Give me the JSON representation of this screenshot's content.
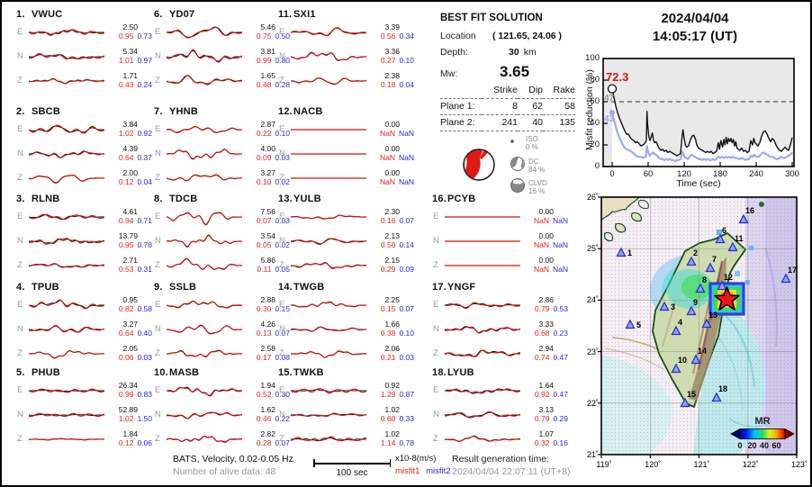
{
  "header": {
    "date": "2024/04/04",
    "time": "14:05:17  (UT)"
  },
  "stations": [
    {
      "id": "1.",
      "name": "VWUC",
      "components": [
        {
          "ch": "E",
          "amp": "2.50",
          "m1": "0.95",
          "m2": "0.73"
        },
        {
          "ch": "N",
          "amp": "5.34",
          "m1": "1.01",
          "m2": "0.97"
        },
        {
          "ch": "Z",
          "amp": "1.71",
          "m1": "0.43",
          "m2": "0.24"
        }
      ]
    },
    {
      "id": "2.",
      "name": "SBCB",
      "components": [
        {
          "ch": "E",
          "amp": "3.84",
          "m1": "1.02",
          "m2": "0.92"
        },
        {
          "ch": "N",
          "amp": "4.39",
          "m1": "0.64",
          "m2": "0.37"
        },
        {
          "ch": "Z",
          "amp": "2.00",
          "m1": "0.12",
          "m2": "0.04"
        }
      ]
    },
    {
      "id": "3.",
      "name": "RLNB",
      "components": [
        {
          "ch": "E",
          "amp": "4.61",
          "m1": "0.94",
          "m2": "0.71"
        },
        {
          "ch": "N",
          "amp": "13.79",
          "m1": "0.95",
          "m2": "0.78"
        },
        {
          "ch": "Z",
          "amp": "2.71",
          "m1": "0.53",
          "m2": "0.31"
        }
      ]
    },
    {
      "id": "4.",
      "name": "TPUB",
      "components": [
        {
          "ch": "E",
          "amp": "0.95",
          "m1": "0.82",
          "m2": "0.58"
        },
        {
          "ch": "N",
          "amp": "3.27",
          "m1": "0.64",
          "m2": "0.40"
        },
        {
          "ch": "Z",
          "amp": "2.05",
          "m1": "0.06",
          "m2": "0.03"
        }
      ]
    },
    {
      "id": "5.",
      "name": "PHUB",
      "components": [
        {
          "ch": "E",
          "amp": "26.34",
          "m1": "0.99",
          "m2": "0.83"
        },
        {
          "ch": "N",
          "amp": "52.89",
          "m1": "1.02",
          "m2": "1.50"
        },
        {
          "ch": "Z",
          "amp": "1.84",
          "m1": "0.12",
          "m2": "0.06"
        }
      ]
    },
    {
      "id": "6.",
      "name": "YD07",
      "components": [
        {
          "ch": "E",
          "amp": "5.46",
          "m1": "0.75",
          "m2": "0.50"
        },
        {
          "ch": "N",
          "amp": "3.81",
          "m1": "0.99",
          "m2": "0.80"
        },
        {
          "ch": "Z",
          "amp": "1.65",
          "m1": "0.48",
          "m2": "0.28"
        }
      ]
    },
    {
      "id": "7.",
      "name": "YHNB",
      "components": [
        {
          "ch": "E",
          "amp": "2.87",
          "m1": "0.22",
          "m2": "0.10"
        },
        {
          "ch": "N",
          "amp": "4.00",
          "m1": "0.09",
          "m2": "0.03"
        },
        {
          "ch": "Z",
          "amp": "3.27",
          "m1": "0.10",
          "m2": "0.02"
        }
      ]
    },
    {
      "id": "8.",
      "name": "TDCB",
      "components": [
        {
          "ch": "E",
          "amp": "7.56",
          "m1": "0.07",
          "m2": "0.03"
        },
        {
          "ch": "N",
          "amp": "3.54",
          "m1": "0.05",
          "m2": "0.02"
        },
        {
          "ch": "Z",
          "amp": "5.86",
          "m1": "0.11",
          "m2": "0.05"
        }
      ]
    },
    {
      "id": "9.",
      "name": "SSLB",
      "components": [
        {
          "ch": "E",
          "amp": "2.88",
          "m1": "0.30",
          "m2": "0.15"
        },
        {
          "ch": "N",
          "amp": "4.26",
          "m1": "0.13",
          "m2": "0.07"
        },
        {
          "ch": "Z",
          "amp": "2.58",
          "m1": "0.17",
          "m2": "0.08"
        }
      ]
    },
    {
      "id": "10.",
      "name": "MASB",
      "components": [
        {
          "ch": "E",
          "amp": "1.94",
          "m1": "0.52",
          "m2": "0.30"
        },
        {
          "ch": "N",
          "amp": "1.62",
          "m1": "0.46",
          "m2": "0.22"
        },
        {
          "ch": "Z",
          "amp": "2.82",
          "m1": "0.28",
          "m2": "0.07"
        }
      ]
    },
    {
      "id": "11.",
      "name": "SXI1",
      "components": [
        {
          "ch": "E",
          "amp": "3.39",
          "m1": "0.56",
          "m2": "0.34"
        },
        {
          "ch": "N",
          "amp": "3.36",
          "m1": "0.27",
          "m2": "0.10"
        },
        {
          "ch": "Z",
          "amp": "2.38",
          "m1": "0.18",
          "m2": "0.04"
        }
      ]
    },
    {
      "id": "12.",
      "name": "NACB",
      "components": [
        {
          "ch": "E",
          "amp": "0.00",
          "m1": "NaN",
          "m2": "NaN"
        },
        {
          "ch": "N",
          "amp": "0.00",
          "m1": "NaN",
          "m2": "NaN"
        },
        {
          "ch": "Z",
          "amp": "0.00",
          "m1": "NaN",
          "m2": "NaN"
        }
      ]
    },
    {
      "id": "13.",
      "name": "YULB",
      "components": [
        {
          "ch": "E",
          "amp": "2.30",
          "m1": "0.16",
          "m2": "0.07"
        },
        {
          "ch": "N",
          "amp": "2.13",
          "m1": "0.50",
          "m2": "0.14"
        },
        {
          "ch": "Z",
          "amp": "2.15",
          "m1": "0.29",
          "m2": "0.09"
        }
      ]
    },
    {
      "id": "14.",
      "name": "TWGB",
      "components": [
        {
          "ch": "E",
          "amp": "2.25",
          "m1": "0.15",
          "m2": "0.07"
        },
        {
          "ch": "N",
          "amp": "1.66",
          "m1": "0.38",
          "m2": "0.10"
        },
        {
          "ch": "Z",
          "amp": "2.06",
          "m1": "0.21",
          "m2": "0.03"
        }
      ]
    },
    {
      "id": "15.",
      "name": "TWKB",
      "components": [
        {
          "ch": "E",
          "amp": "0.92",
          "m1": "1.29",
          "m2": "0.87"
        },
        {
          "ch": "N",
          "amp": "1.02",
          "m1": "0.60",
          "m2": "0.33"
        },
        {
          "ch": "Z",
          "amp": "1.02",
          "m1": "1.14",
          "m2": "0.78"
        }
      ]
    },
    {
      "id": "16.",
      "name": "PCYB",
      "components": [
        {
          "ch": "E",
          "amp": "0.00",
          "m1": "NaN",
          "m2": "NaN"
        },
        {
          "ch": "N",
          "amp": "0.00",
          "m1": "NaN",
          "m2": "NaN"
        },
        {
          "ch": "Z",
          "amp": "0.00",
          "m1": "NaN",
          "m2": "NaN"
        }
      ]
    },
    {
      "id": "17.",
      "name": "YNGF",
      "components": [
        {
          "ch": "E",
          "amp": "2.86",
          "m1": "0.79",
          "m2": "0.53"
        },
        {
          "ch": "N",
          "amp": "3.33",
          "m1": "0.68",
          "m2": "0.23"
        },
        {
          "ch": "Z",
          "amp": "2.94",
          "m1": "0.74",
          "m2": "0.47"
        }
      ]
    },
    {
      "id": "18.",
      "name": "LYUB",
      "components": [
        {
          "ch": "E",
          "amp": "1.64",
          "m1": "0.92",
          "m2": "0.47"
        },
        {
          "ch": "N",
          "amp": "3.13",
          "m1": "0.79",
          "m2": "0.29"
        },
        {
          "ch": "Z",
          "amp": "1.07",
          "m1": "0.32",
          "m2": "0.16"
        }
      ]
    }
  ],
  "best_fit": {
    "title": "BEST FIT SOLUTION",
    "location_label": "Location",
    "location_value": "( 121.65,  24.06 )",
    "depth_label": "Depth:",
    "depth_value": "30",
    "depth_unit": "km",
    "mw_label": "Mw:",
    "mw_value": "3.65",
    "table": {
      "headers": [
        "Strike",
        "Dip",
        "Rake"
      ],
      "rows": [
        {
          "label": "Plane 1:",
          "strike": "8",
          "dip": "62",
          "rake": "58"
        },
        {
          "label": "Plane 2:",
          "strike": "241",
          "dip": "40",
          "rake": "135"
        }
      ]
    },
    "decomposition": [
      {
        "name": "ISO",
        "pct": "0  %"
      },
      {
        "name": "DC",
        "pct": "84 %"
      },
      {
        "name": "CLVD",
        "pct": "16 %"
      }
    ]
  },
  "misfit_plot": {
    "ylabel": "Misfit reduction (%)",
    "xlabel": "Time (sec)",
    "yticks": [
      "100",
      "80",
      "60",
      "40",
      "20",
      "0"
    ],
    "xticks": [
      "0",
      "60",
      "120",
      "180",
      "240",
      "300"
    ],
    "peak_label": "72.3",
    "gray_label": "47",
    "blue_label": "43"
  },
  "map": {
    "lat_labels": [
      "26˚",
      "25˚",
      "24˚",
      "23˚",
      "22˚",
      "21˚"
    ],
    "lon_labels": [
      "119˚",
      "120˚",
      "121˚",
      "122˚",
      "123˚"
    ],
    "colorbar_title": "MR",
    "colorbar_ticks": [
      "0",
      "20",
      "40",
      "60"
    ],
    "station_numbers": [
      "1",
      "2",
      "3",
      "4",
      "5",
      "6",
      "7",
      "8",
      "9",
      "10",
      "11",
      "12",
      "13",
      "14",
      "15",
      "16",
      "17",
      "18"
    ]
  },
  "footer": {
    "left_line1": "BATS, Velocity, 0.02-0.05 Hz",
    "left_line2": "Number of alive data: 48",
    "scale_label": "100 sec",
    "units": "x10-8(m/s)",
    "misfit1_label": "misfit1",
    "misfit2_label": "misfit2",
    "right_line1": "Result generation time:",
    "right_line2": "2024/04/04 22:07:11 (UT+8)"
  },
  "colors": {
    "misfit1": "#e02222",
    "misfit2": "#2a2ad0",
    "waveform_red": "#cc1111",
    "waveform_black": "#111111",
    "misfit_curve_black": "#111111",
    "misfit_curve_lavender": "#a2a8ef",
    "beachball_red": "#e01818",
    "map_square_blue": "#3340cc"
  }
}
